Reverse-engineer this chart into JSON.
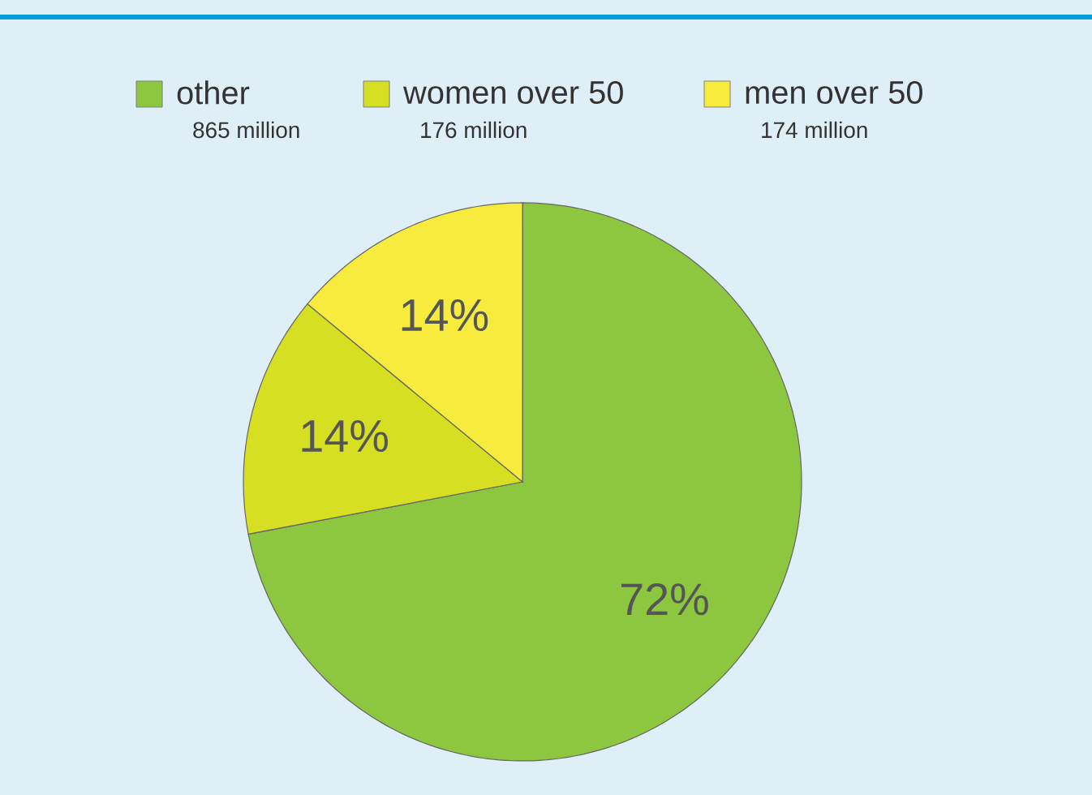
{
  "chart_data": {
    "type": "pie",
    "categories": [
      "other",
      "women over 50",
      "men over 50"
    ],
    "values": [
      72,
      14,
      14
    ],
    "colors": [
      "#8dc63f",
      "#d7df23",
      "#f7ec3d"
    ],
    "value_labels": [
      "72%",
      "14%",
      "14%"
    ],
    "legend": "top",
    "annotations": [
      "865 million",
      "176 million",
      "174 million"
    ]
  }
}
